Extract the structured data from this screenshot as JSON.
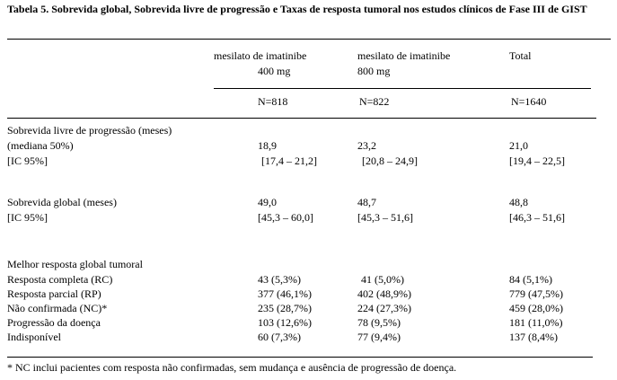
{
  "title": "Tabela 5. Sobrevida global, Sobrevida livre de progressão e Taxas de resposta tumoral nos estudos clínicos de Fase III de GIST",
  "columns": [
    {
      "line1": "mesilato de imatinibe",
      "line2": "400 mg",
      "n": "N=818"
    },
    {
      "line1": "mesilato de imatinibe",
      "line2": "800 mg",
      "n": "N=822"
    },
    {
      "line1": "Total",
      "line2": "",
      "n": "N=1640"
    }
  ],
  "sections": {
    "pfs": {
      "heading": "Sobrevida livre de progressão (meses)",
      "rows": [
        {
          "label": "(mediana 50%)",
          "values": [
            "18,9",
            "23,2",
            "21,0"
          ]
        },
        {
          "label": "[IC 95%]",
          "values": [
            "[17,4 – 21,2]",
            "[20,8 – 24,9]",
            "[19,4 – 22,5]"
          ]
        }
      ]
    },
    "os": {
      "rows": [
        {
          "label": "Sobrevida global (meses)",
          "values": [
            "49,0",
            "48,7",
            "48,8"
          ]
        },
        {
          "label": "[IC 95%]",
          "values": [
            "[45,3 – 60,0]",
            "[45,3 – 51,6]",
            "[46,3 – 51,6]"
          ]
        }
      ]
    },
    "response": {
      "heading": "Melhor resposta global tumoral",
      "rows": [
        {
          "label": "Resposta completa (RC)",
          "values": [
            "43 (5,3%)",
            "41 (5,0%)",
            "84 (5,1%)"
          ]
        },
        {
          "label": "Resposta parcial (RP)",
          "values": [
            "377 (46,1%)",
            "402 (48,9%)",
            "779 (47,5%)"
          ]
        },
        {
          "label": "Não confirmada (NC)*",
          "values": [
            "235 (28,7%)",
            "224 (27,3%)",
            "459 (28,0%)"
          ]
        },
        {
          "label": "Progressão da doença",
          "values": [
            "103 (12,6%)",
            "78 (9,5%)",
            "181 (11,0%)"
          ]
        },
        {
          "label": "Indisponível",
          "values": [
            "60 (7,3%)",
            "77 (9,4%)",
            "137 (8,4%)"
          ]
        }
      ]
    }
  },
  "footnote": "* NC inclui pacientes com resposta não confirmadas, sem mudança e ausência de progressão de doença."
}
